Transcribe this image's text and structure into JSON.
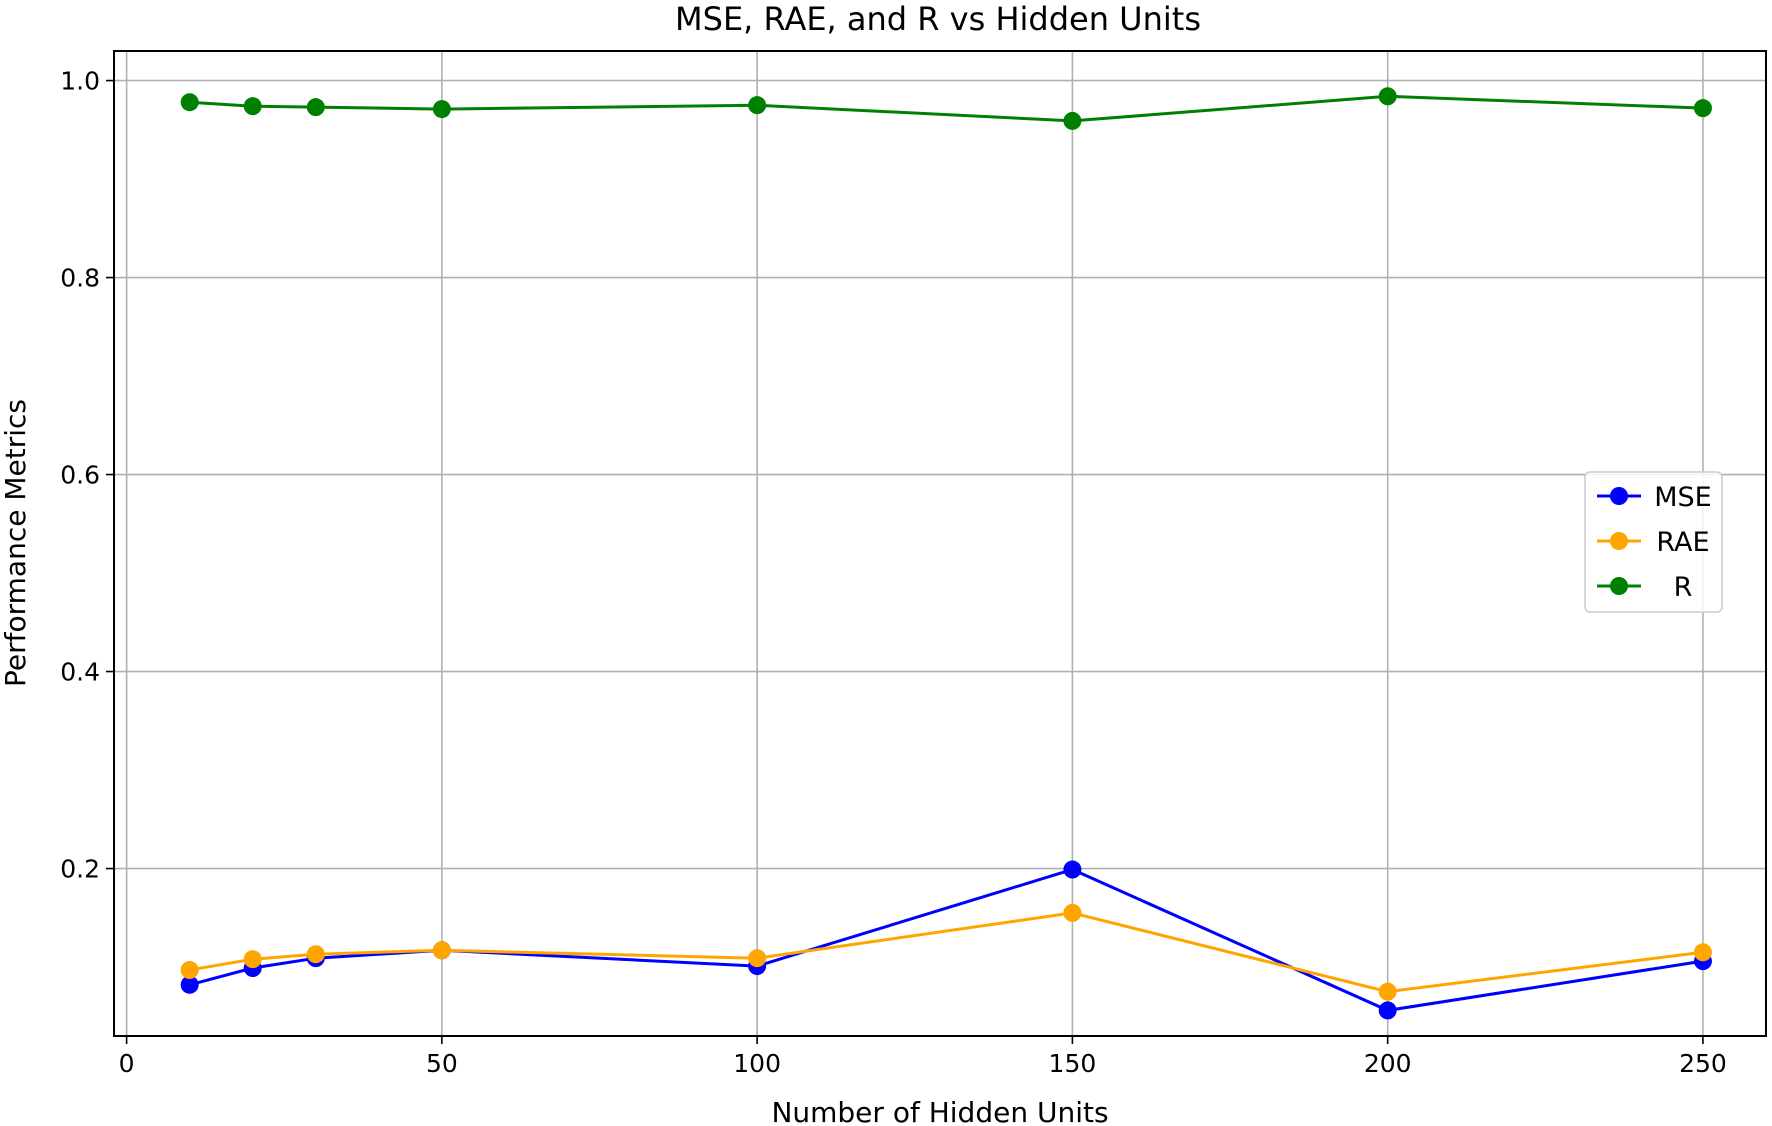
{
  "chart_data": {
    "type": "line",
    "title": "MSE, RAE, and R vs Hidden Units",
    "xlabel": "Number of Hidden Units",
    "ylabel": "Performance Metrics",
    "xlim": [
      -2,
      260
    ],
    "ylim": [
      0.03,
      1.03
    ],
    "xticks": [
      0,
      50,
      100,
      150,
      200,
      250
    ],
    "xtick_labels": [
      "0",
      "50",
      "100",
      "150",
      "200",
      "250"
    ],
    "yticks": [
      0.2,
      0.4,
      0.6,
      0.8,
      1.0
    ],
    "ytick_labels": [
      "0.2",
      "0.4",
      "0.6",
      "0.8",
      "1.0"
    ],
    "grid": true,
    "legend_position": "right",
    "x": [
      10,
      20,
      30,
      50,
      100,
      150,
      200,
      250
    ],
    "series": [
      {
        "name": "MSE",
        "color": "#0000ff",
        "values": [
          0.082,
          0.099,
          0.109,
          0.117,
          0.101,
          0.199,
          0.056,
          0.106
        ]
      },
      {
        "name": "RAE",
        "color": "#ffa500",
        "values": [
          0.097,
          0.108,
          0.113,
          0.117,
          0.109,
          0.155,
          0.075,
          0.115
        ]
      },
      {
        "name": "R",
        "color": "#008000",
        "values": [
          0.978,
          0.974,
          0.973,
          0.971,
          0.975,
          0.959,
          0.984,
          0.972
        ]
      }
    ]
  }
}
